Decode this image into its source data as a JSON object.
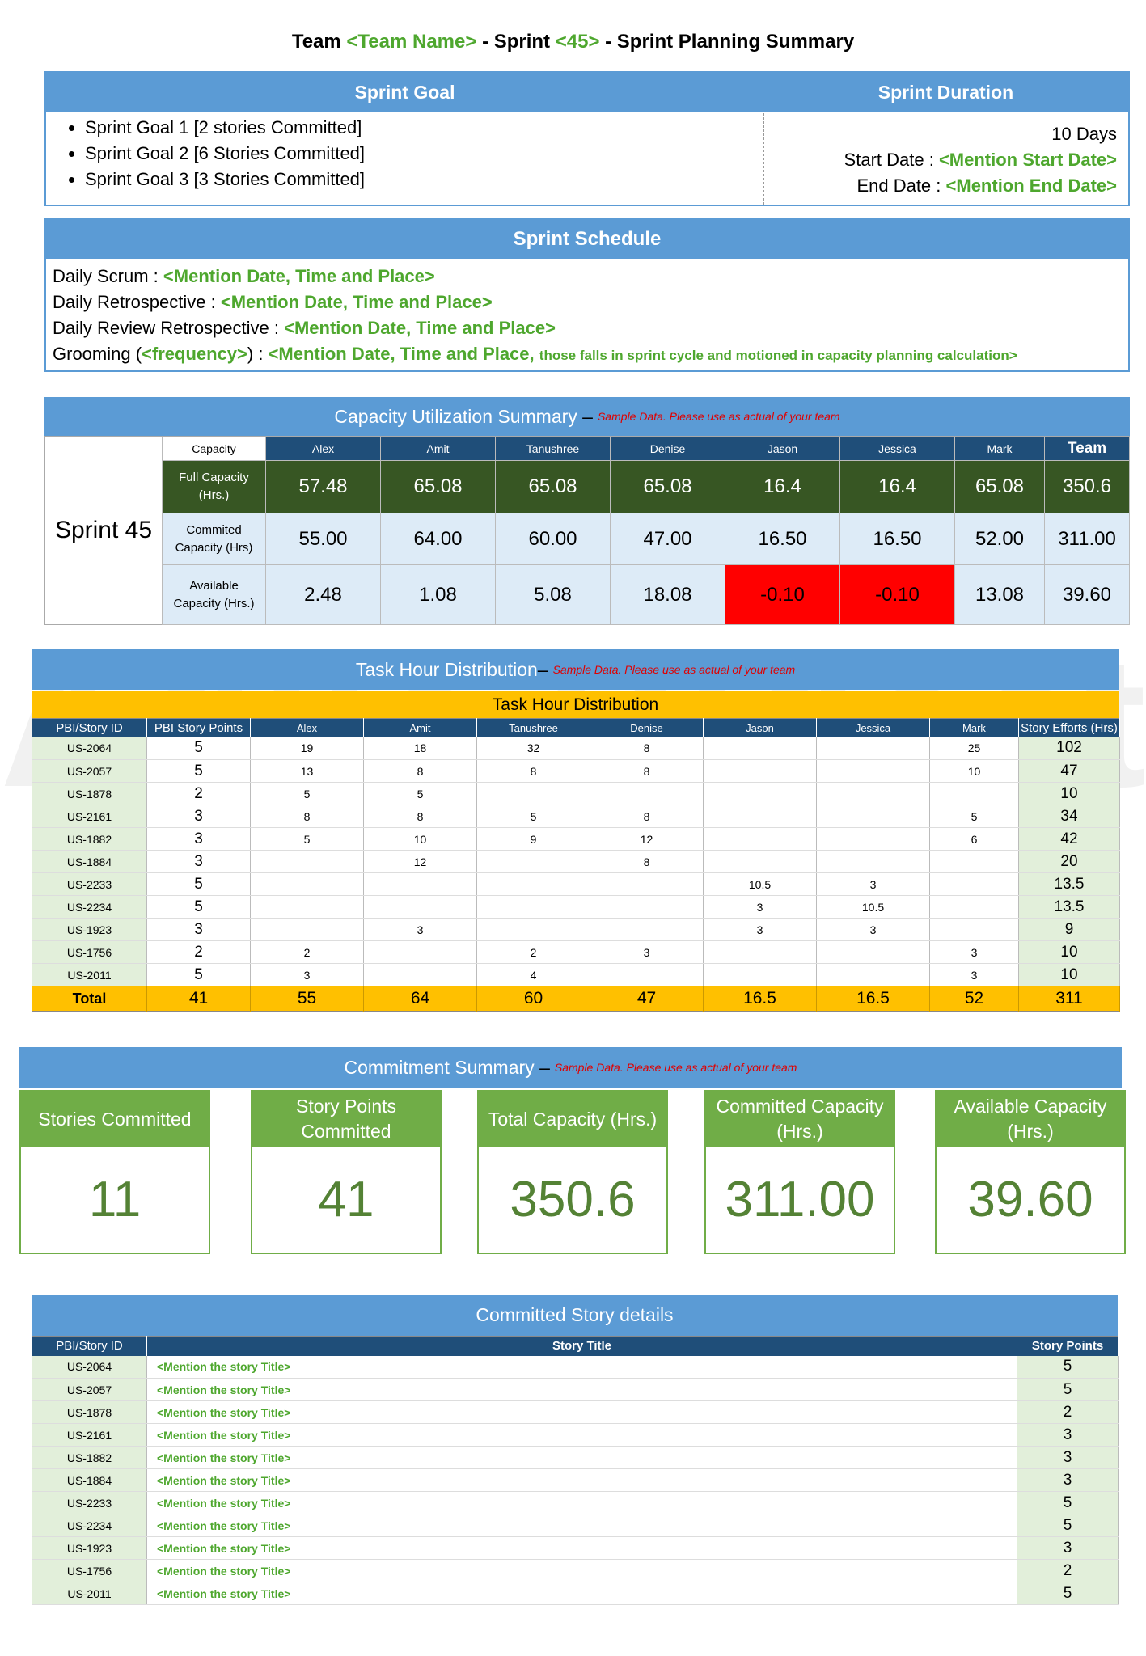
{
  "header": {
    "title": [
      "Team",
      "<Team Name>",
      "- Sprint",
      "<45>",
      "- Sprint Planning Summary"
    ]
  },
  "sprint_goal": {
    "heading": "Sprint Goal",
    "items": [
      "Sprint Goal 1 [2 stories Committed]",
      "Sprint Goal 2 [6 Stories Committed]",
      "Sprint Goal 3 [3 Stories Committed]"
    ]
  },
  "sprint_duration": {
    "heading": "Sprint Duration",
    "days": "10 Days",
    "start_label": "Start Date :",
    "start_value": "<Mention Start Date>",
    "end_label": "End Date :",
    "end_value": "<Mention End Date>"
  },
  "schedule": {
    "heading": "Sprint Schedule",
    "lines": [
      [
        "Daily Scrum :",
        "<Mention Date, Time and Place>"
      ],
      [
        "Daily Retrospective :",
        "<Mention Date, Time and Place>"
      ],
      [
        "Daily Review Retrospective :",
        "<Mention Date, Time and Place>"
      ],
      [
        "Grooming (",
        "<frequency>",
        ") :",
        "<Mention Date, Time and Place,",
        "those falls in sprint cycle and motioned in capacity planning calculation>"
      ]
    ]
  },
  "capacity": {
    "heading": "Capacity Utilization Summary",
    "dash": "–",
    "note": "Sample Data. Please use as actual of your team",
    "sprint": "Sprint 45",
    "columns": [
      "Capacity",
      "Alex",
      "Amit",
      "Tanushree",
      "Denise",
      "Jason",
      "Jessica",
      "Mark",
      "Team"
    ],
    "rows": [
      {
        "label": "Full Capacity (Hrs.)",
        "values": [
          "57.48",
          "65.08",
          "65.08",
          "65.08",
          "16.4",
          "16.4",
          "65.08",
          "350.6"
        ]
      },
      {
        "label": "Commited Capacity (Hrs)",
        "values": [
          "55.00",
          "64.00",
          "60.00",
          "47.00",
          "16.50",
          "16.50",
          "52.00",
          "311.00"
        ]
      },
      {
        "label": "Available Capacity (Hrs.)",
        "values": [
          "2.48",
          "1.08",
          "5.08",
          "18.08",
          "-0.10",
          "-0.10",
          "13.08",
          "39.60"
        ]
      }
    ]
  },
  "task_hours": {
    "heading": "Task Hour Distribution",
    "dash": "–",
    "note": "Sample Data. Please use as actual of your team",
    "subheading": "Task Hour Distribution",
    "columns": [
      "PBI/Story ID",
      "PBI Story Points",
      "Alex",
      "Amit",
      "Tanushree",
      "Denise",
      "Jason",
      "Jessica",
      "Mark",
      "Story Efforts (Hrs)"
    ],
    "rows": [
      [
        "US-2064",
        "5",
        "19",
        "18",
        "32",
        "8",
        null,
        null,
        "25",
        "102"
      ],
      [
        "US-2057",
        "5",
        "13",
        "8",
        "8",
        "8",
        null,
        null,
        "10",
        "47"
      ],
      [
        "US-1878",
        "2",
        "5",
        "5",
        null,
        null,
        null,
        null,
        null,
        "10"
      ],
      [
        "US-2161",
        "3",
        "8",
        "8",
        "5",
        "8",
        null,
        null,
        "5",
        "34"
      ],
      [
        "US-1882",
        "3",
        "5",
        "10",
        "9",
        "12",
        null,
        null,
        "6",
        "42"
      ],
      [
        "US-1884",
        "3",
        null,
        "12",
        null,
        "8",
        null,
        null,
        null,
        "20"
      ],
      [
        "US-2233",
        "5",
        null,
        null,
        null,
        null,
        "10.5",
        "3",
        null,
        "13.5"
      ],
      [
        "US-2234",
        "5",
        null,
        null,
        null,
        null,
        "3",
        "10.5",
        null,
        "13.5"
      ],
      [
        "US-1923",
        "3",
        null,
        "3",
        null,
        null,
        "3",
        "3",
        null,
        "9"
      ],
      [
        "US-1756",
        "2",
        "2",
        null,
        "2",
        "3",
        null,
        null,
        "3",
        "10"
      ],
      [
        "US-2011",
        "5",
        "3",
        null,
        "4",
        null,
        null,
        null,
        "3",
        "10"
      ]
    ],
    "total": [
      "Total",
      "41",
      "55",
      "64",
      "60",
      "47",
      "16.5",
      "16.5",
      "52",
      "311"
    ]
  },
  "commitment": {
    "heading": "Commitment Summary",
    "dash": "–",
    "note": "Sample Data. Please use as actual of your team",
    "cards": [
      {
        "label": "Stories Committed",
        "value": "11"
      },
      {
        "label": "Story Points Committed",
        "value": "41"
      },
      {
        "label": "Total Capacity (Hrs.)",
        "value": "350.6"
      },
      {
        "label": "Committed Capacity (Hrs.)",
        "value": "311.00"
      },
      {
        "label": "Available Capacity (Hrs.)",
        "value": "39.60"
      }
    ]
  },
  "stories": {
    "heading": "Committed Story details",
    "columns": [
      "PBI/Story ID",
      "Story Title",
      "Story Points"
    ],
    "rows": [
      [
        "US-2064",
        "<Mention the story Title>",
        "5"
      ],
      [
        "US-2057",
        "<Mention the story Title>",
        "5"
      ],
      [
        "US-1878",
        "<Mention the story Title>",
        "2"
      ],
      [
        "US-2161",
        "<Mention the story Title>",
        "3"
      ],
      [
        "US-1882",
        "<Mention the story Title>",
        "3"
      ],
      [
        "US-1884",
        "<Mention the story Title>",
        "3"
      ],
      [
        "US-2233",
        "<Mention the story Title>",
        "5"
      ],
      [
        "US-2234",
        "<Mention the story Title>",
        "5"
      ],
      [
        "US-1923",
        "<Mention the story Title>",
        "3"
      ],
      [
        "US-1756",
        "<Mention the story Title>",
        "2"
      ],
      [
        "US-2011",
        "<Mention the story Title>",
        "5"
      ]
    ]
  },
  "watermark": "Agile Digest"
}
